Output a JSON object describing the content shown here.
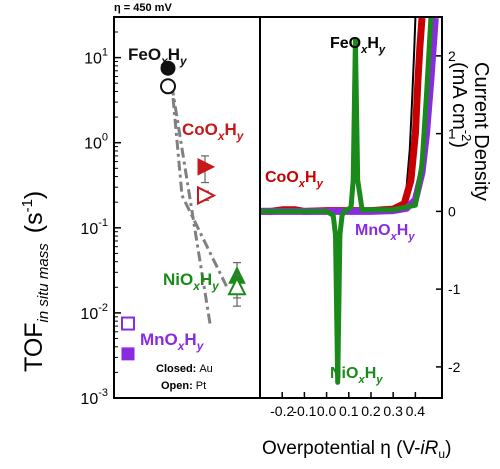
{
  "chart_data": [
    {
      "type": "scatter",
      "annotation": "η = 450 mV",
      "ylabel": "TOF",
      "ylabel_sub": "in situ mass",
      "ylabel_unit": "(s",
      "ylabel_unit_sup": "-1",
      "ylabel_unit_close": ")",
      "y_scale": "log",
      "ylim": [
        0.001,
        30
      ],
      "y_ticks": [
        {
          "value": 0.001,
          "base": "10",
          "exp": "-3"
        },
        {
          "value": 0.01,
          "base": "10",
          "exp": "-2"
        },
        {
          "value": 0.1,
          "base": "10",
          "exp": "-1"
        },
        {
          "value": 1,
          "base": "10",
          "exp": "0"
        },
        {
          "value": 10,
          "base": "10",
          "exp": "1"
        }
      ],
      "legend_note": {
        "closed": "Closed:",
        "closed_sub": "Au",
        "open": "Open:",
        "open_sub": "Pt"
      },
      "series": [
        {
          "label": "FeO",
          "sub1": "x",
          "mid": "H",
          "sub2": "y",
          "color": "#111111",
          "closed": {
            "value": 7.5,
            "marker": "circle",
            "err": 0.8
          },
          "open": {
            "value": 4.6,
            "marker": "circle",
            "err": 0.5
          }
        },
        {
          "label": "CoO",
          "sub1": "x",
          "mid": "H",
          "sub2": "y",
          "color": "#c8181b",
          "closed": {
            "value": 0.52,
            "marker": "triangle-right",
            "err": 0.18
          },
          "open": {
            "value": 0.24,
            "marker": "triangle-right",
            "err": 0.03
          }
        },
        {
          "label": "NiO",
          "sub1": "x",
          "mid": "H",
          "sub2": "y",
          "color": "#1a8a1a",
          "closed": {
            "value": 0.027,
            "marker": "triangle-up",
            "err": 0.012
          },
          "open": {
            "value": 0.02,
            "marker": "triangle-up",
            "err": 0.008
          }
        },
        {
          "label": "MnO",
          "sub1": "x",
          "mid": "H",
          "sub2": "y",
          "color": "#8a2be2",
          "closed": {
            "value": 0.0033,
            "marker": "square",
            "err": 0.0004
          },
          "open": {
            "value": 0.0075,
            "marker": "square",
            "err": 0.0008
          }
        }
      ],
      "trend_line": {
        "style": "dash-dot",
        "color": "#808080"
      }
    },
    {
      "type": "line",
      "xlabel": "Overpotential η (V-",
      "xlabel_ir": "iR",
      "xlabel_sub": "u",
      "xlabel_close": ")",
      "ylabel": "Current Density",
      "ylabel_unit": "(mA cm",
      "ylabel_unit_sup": "-2",
      "ylabel_unit_close": ")",
      "xlim": [
        -0.3,
        0.52
      ],
      "ylim": [
        -2.4,
        2.5
      ],
      "x_ticks": [
        "-0.2",
        "-0.1",
        "0.0",
        "0.1",
        "0.2",
        "0.3",
        "0.4"
      ],
      "y_ticks": [
        "-2",
        "-1",
        "0",
        "1",
        "2"
      ],
      "series": [
        {
          "name": "FeOxHy",
          "label": "FeO",
          "sub1": "x",
          "mid": "H",
          "sub2": "y",
          "color": "#000000",
          "x": [
            -0.3,
            0.1,
            0.3,
            0.34,
            0.36,
            0.375,
            0.385,
            0.395,
            0.4
          ],
          "y": [
            0.0,
            0.01,
            0.04,
            0.1,
            0.3,
            0.8,
            1.4,
            2.1,
            2.5
          ]
        },
        {
          "name": "CoOxHy",
          "label": "CoO",
          "sub1": "x",
          "mid": "H",
          "sub2": "y",
          "color": "#c80000",
          "x": [
            -0.3,
            -0.25,
            -0.2,
            -0.17,
            -0.14,
            -0.1,
            0.0,
            0.1,
            0.2,
            0.3,
            0.35,
            0.38,
            0.4,
            0.41,
            0.42,
            0.43
          ],
          "y": [
            0.0,
            0.0,
            0.02,
            0.02,
            0.02,
            0.0,
            0.01,
            0.01,
            0.01,
            0.03,
            0.1,
            0.4,
            1.0,
            1.6,
            2.1,
            2.5
          ]
        },
        {
          "name": "MnOxHy",
          "label": "MnO",
          "sub1": "x",
          "mid": "H",
          "sub2": "y",
          "color": "#8a2be2",
          "x": [
            -0.3,
            0.2,
            0.3,
            0.36,
            0.4,
            0.43,
            0.45,
            0.47,
            0.49
          ],
          "y": [
            0.0,
            0.0,
            0.01,
            0.04,
            0.15,
            0.5,
            1.0,
            1.7,
            2.5
          ]
        },
        {
          "name": "NiOxHy",
          "label": "NiO",
          "sub1": "x",
          "mid": "H",
          "sub2": "y",
          "color": "#1a8a1a",
          "x": [
            -0.3,
            -0.1,
            0.0,
            0.03,
            0.04,
            0.05,
            0.06,
            0.07,
            0.08,
            0.11,
            0.12,
            0.13,
            0.14,
            0.16,
            0.3,
            0.4,
            0.43,
            0.45,
            0.47
          ],
          "y": [
            0.0,
            0.0,
            0.0,
            -0.05,
            -0.3,
            -2.2,
            -0.3,
            -0.05,
            0.0,
            0.05,
            0.4,
            2.2,
            0.4,
            0.02,
            0.02,
            0.08,
            0.6,
            1.5,
            2.5
          ]
        }
      ]
    }
  ]
}
